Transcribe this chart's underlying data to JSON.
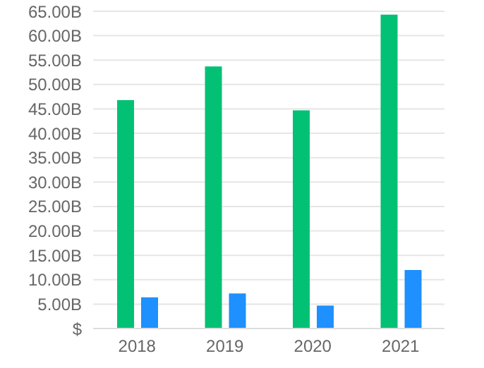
{
  "chart_data": {
    "type": "bar",
    "categories": [
      "2018",
      "2019",
      "2020",
      "2021"
    ],
    "series": [
      {
        "color": "#02c174",
        "values": [
          46.8,
          53.7,
          44.7,
          64.3
        ]
      },
      {
        "color": "#1e90ff",
        "values": [
          6.4,
          7.2,
          4.7,
          12.0
        ]
      }
    ],
    "ylim": [
      0,
      65
    ],
    "yticks": [
      {
        "value": 0,
        "label": "$"
      },
      {
        "value": 5,
        "label": "5.00B"
      },
      {
        "value": 10,
        "label": "10.00B"
      },
      {
        "value": 15,
        "label": "15.00B"
      },
      {
        "value": 20,
        "label": "20.00B"
      },
      {
        "value": 25,
        "label": "25.00B"
      },
      {
        "value": 30,
        "label": "30.00B"
      },
      {
        "value": 35,
        "label": "35.00B"
      },
      {
        "value": 40,
        "label": "40.00B"
      },
      {
        "value": 45,
        "label": "45.00B"
      },
      {
        "value": 50,
        "label": "50.00B"
      },
      {
        "value": 55,
        "label": "55.00B"
      },
      {
        "value": 60,
        "label": "60.00B"
      },
      {
        "value": 65,
        "label": "65.00B"
      }
    ],
    "grid": "y",
    "legend": false
  }
}
